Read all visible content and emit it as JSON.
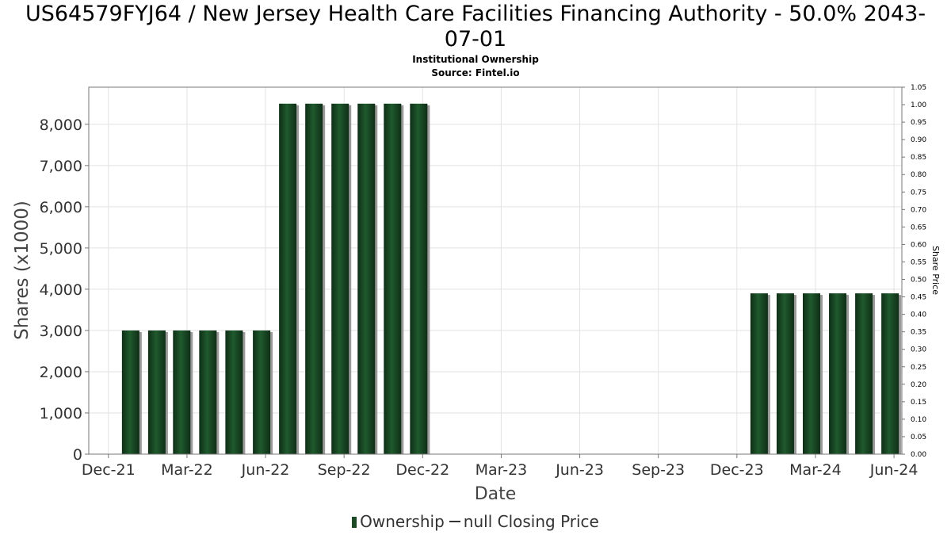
{
  "chart_data": {
    "type": "bar",
    "title_line1": "US64579FYJ64 / New Jersey Health Care Facilities Financing Authority - 50.0% 2043-",
    "title_line2": "07-01",
    "subtitle1": "Institutional Ownership",
    "subtitle2": "Source: Fintel.io",
    "xlabel": "Date",
    "ylabel": "Shares (x1000)",
    "y2label": "Share Price",
    "ylim": [
      0,
      8900
    ],
    "y2lim": [
      0,
      1.05
    ],
    "yticks": [
      0,
      1000,
      2000,
      3000,
      4000,
      5000,
      6000,
      7000,
      8000
    ],
    "yticklabels": [
      "0",
      "1,000",
      "2,000",
      "3,000",
      "4,000",
      "5,000",
      "6,000",
      "7,000",
      "8,000"
    ],
    "y2ticklabels": [
      "0.00",
      "0.05",
      "0.10",
      "0.15",
      "0.20",
      "0.25",
      "0.30",
      "0.35",
      "0.40",
      "0.45",
      "0.50",
      "0.55",
      "0.60",
      "0.65",
      "0.70",
      "0.75",
      "0.80",
      "0.85",
      "0.90",
      "0.95",
      "1.00",
      "1.05"
    ],
    "xtick_labels": [
      "Dec-21",
      "Mar-22",
      "Jun-22",
      "Sep-22",
      "Dec-22",
      "Mar-23",
      "Jun-23",
      "Sep-23",
      "Dec-23",
      "Mar-24",
      "Jun-24"
    ],
    "xlim_months": [
      -0.75,
      30.3
    ],
    "bars": [
      {
        "month": 0.85,
        "value": 3000
      },
      {
        "month": 1.85,
        "value": 3000
      },
      {
        "month": 2.8,
        "value": 3000
      },
      {
        "month": 3.8,
        "value": 3000
      },
      {
        "month": 4.8,
        "value": 3000
      },
      {
        "month": 5.85,
        "value": 3000
      },
      {
        "month": 6.85,
        "value": 8500
      },
      {
        "month": 7.85,
        "value": 8500
      },
      {
        "month": 8.85,
        "value": 8500
      },
      {
        "month": 9.85,
        "value": 8500
      },
      {
        "month": 10.85,
        "value": 8500
      },
      {
        "month": 11.85,
        "value": 8500
      },
      {
        "month": 24.85,
        "value": 3900
      },
      {
        "month": 25.85,
        "value": 3900
      },
      {
        "month": 26.85,
        "value": 3900
      },
      {
        "month": 27.85,
        "value": 3900
      },
      {
        "month": 28.85,
        "value": 3900
      },
      {
        "month": 29.85,
        "value": 3900
      }
    ],
    "series": [
      {
        "name": "Ownership",
        "color": "#1c4a26"
      },
      {
        "name": "null Closing Price",
        "color": "#333333"
      }
    ],
    "grid": true,
    "legend_position": "bottom"
  }
}
